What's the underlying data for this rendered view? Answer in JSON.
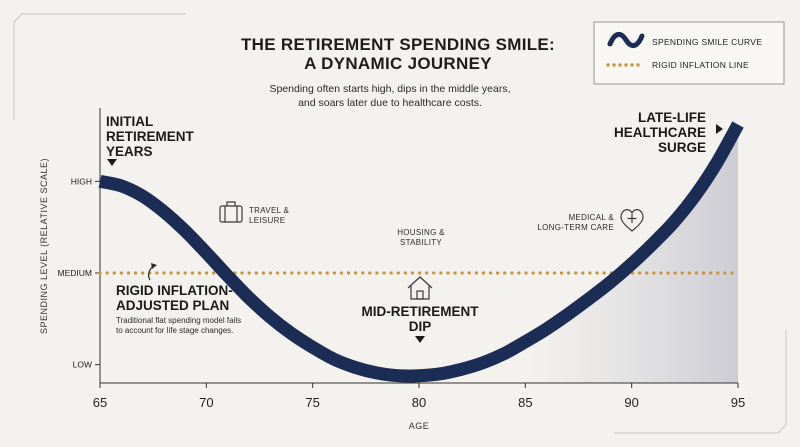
{
  "chart_data": {
    "type": "line",
    "title_lines": [
      "THE RETIREMENT SPENDING SMILE:",
      "A DYNAMIC JOURNEY"
    ],
    "subtitle_lines": [
      "Spending often starts high, dips in the middle years,",
      "and soars later due to healthcare costs."
    ],
    "xlabel": "AGE",
    "ylabel": "SPENDING LEVEL (RELATIVE SCALE)",
    "x_ticks": [
      65,
      70,
      75,
      80,
      85,
      90,
      95
    ],
    "xlim": [
      65,
      95
    ],
    "y_ticks": [
      {
        "label": "LOW",
        "value": 1
      },
      {
        "label": "MEDIUM",
        "value": 2
      },
      {
        "label": "HIGH",
        "value": 3
      }
    ],
    "ylim": [
      0.8,
      3.8
    ],
    "series": [
      {
        "name": "SPENDING SMILE CURVE",
        "color": "#1c2d55",
        "style": "thick-line",
        "x": [
          65,
          66,
          67,
          68,
          69,
          70,
          71,
          72,
          73,
          74,
          75,
          76,
          77,
          78,
          79,
          80,
          81,
          82,
          83,
          84,
          85,
          86,
          87,
          88,
          89,
          90,
          91,
          92,
          93,
          94,
          95
        ],
        "y": [
          3.0,
          2.95,
          2.84,
          2.67,
          2.46,
          2.22,
          1.97,
          1.73,
          1.52,
          1.34,
          1.19,
          1.06,
          0.97,
          0.91,
          0.88,
          0.88,
          0.9,
          0.95,
          1.02,
          1.12,
          1.25,
          1.39,
          1.55,
          1.72,
          1.9,
          2.1,
          2.32,
          2.56,
          2.85,
          3.2,
          3.62
        ]
      },
      {
        "name": "RIGID INFLATION LINE",
        "color": "#c9953a",
        "style": "dotted",
        "x": [
          65,
          95
        ],
        "y": [
          2.0,
          2.0
        ]
      }
    ],
    "legend": {
      "placement": "top-right",
      "items": [
        {
          "label": "SPENDING SMILE CURVE",
          "icon": "wave-icon"
        },
        {
          "label": "RIGID INFLATION LINE",
          "icon": "dotted-line-icon"
        }
      ]
    },
    "annotations": {
      "initial": {
        "lines": [
          "INITIAL",
          "RETIREMENT",
          "YEARS"
        ],
        "icon": "triangle-down-icon"
      },
      "late": {
        "lines": [
          "LATE-LIFE",
          "HEALTHCARE",
          "SURGE"
        ],
        "icon": "triangle-right-icon"
      },
      "mid": {
        "lines": [
          "MID-RETIREMENT",
          "DIP"
        ],
        "icon": "house-icon"
      },
      "rigid": {
        "lines": [
          "RIGID INFLATION-",
          "ADJUSTED PLAN"
        ],
        "note_lines": [
          "Traditional flat spending model fails",
          "to account for life stage changes."
        ],
        "icon": "curved-arrow-icon"
      },
      "travel": {
        "lines": [
          "TRAVEL &",
          "LEISURE"
        ],
        "icon": "suitcase-icon"
      },
      "housing": {
        "lines": [
          "HOUSING &",
          "STABILITY"
        ]
      },
      "medical": {
        "lines": [
          "MEDICAL &",
          "LONG-TERM CARE"
        ],
        "icon": "heart-plus-icon"
      }
    },
    "colors": {
      "curve": "#1c2d55",
      "inflation": "#c9953a",
      "background": "#f4f2ee",
      "shade": "#cfcfd6"
    }
  }
}
